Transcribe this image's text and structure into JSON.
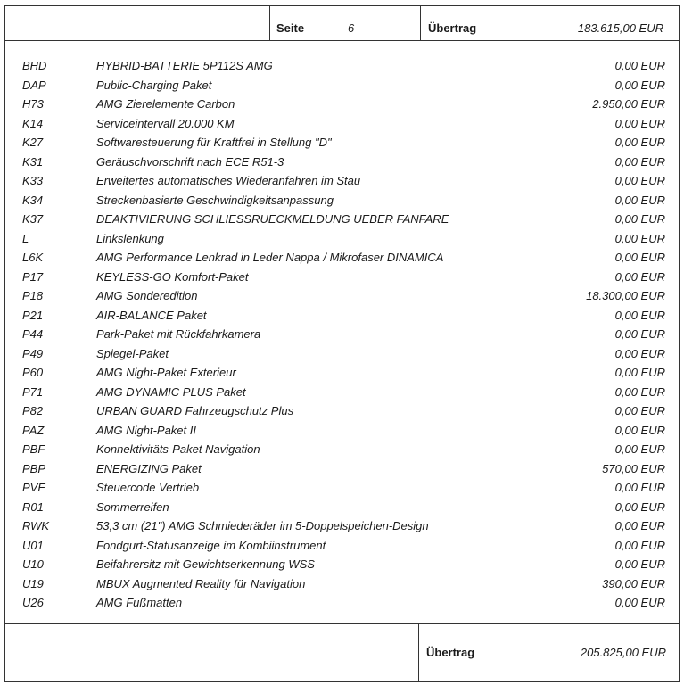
{
  "header": {
    "page_label": "Seite",
    "page_number": "6",
    "carry_label": "Übertrag",
    "carry_value": "183.615,00 EUR"
  },
  "items": [
    {
      "code": "BHD",
      "desc": "HYBRID-BATTERIE 5P112S AMG",
      "price": "0,00 EUR"
    },
    {
      "code": "DAP",
      "desc": "Public-Charging Paket",
      "price": "0,00 EUR"
    },
    {
      "code": "H73",
      "desc": "AMG Zierelemente Carbon",
      "price": "2.950,00 EUR"
    },
    {
      "code": "K14",
      "desc": "Serviceintervall 20.000 KM",
      "price": "0,00 EUR"
    },
    {
      "code": "K27",
      "desc": "Softwaresteuerung für Kraftfrei in Stellung \"D\"",
      "price": "0,00 EUR"
    },
    {
      "code": "K31",
      "desc": "Geräuschvorschrift nach ECE R51-3",
      "price": "0,00 EUR"
    },
    {
      "code": "K33",
      "desc": "Erweitertes automatisches Wiederanfahren im Stau",
      "price": "0,00 EUR"
    },
    {
      "code": "K34",
      "desc": "Streckenbasierte Geschwindigkeitsanpassung",
      "price": "0,00 EUR"
    },
    {
      "code": "K37",
      "desc": "DEAKTIVIERUNG SCHLIESSRUECKMELDUNG UEBER FANFARE",
      "price": "0,00 EUR"
    },
    {
      "code": "L",
      "desc": "Linkslenkung",
      "price": "0,00 EUR"
    },
    {
      "code": "L6K",
      "desc": "AMG Performance Lenkrad in Leder Nappa / Mikrofaser DINAMICA",
      "price": "0,00 EUR"
    },
    {
      "code": "P17",
      "desc": "KEYLESS-GO Komfort-Paket",
      "price": "0,00 EUR"
    },
    {
      "code": "P18",
      "desc": "AMG Sonderedition",
      "price": "18.300,00 EUR"
    },
    {
      "code": "P21",
      "desc": "AIR-BALANCE Paket",
      "price": "0,00 EUR"
    },
    {
      "code": "P44",
      "desc": "Park-Paket mit Rückfahrkamera",
      "price": "0,00 EUR"
    },
    {
      "code": "P49",
      "desc": "Spiegel-Paket",
      "price": "0,00 EUR"
    },
    {
      "code": "P60",
      "desc": "AMG Night-Paket Exterieur",
      "price": "0,00 EUR"
    },
    {
      "code": "P71",
      "desc": "AMG DYNAMIC PLUS Paket",
      "price": "0,00 EUR"
    },
    {
      "code": "P82",
      "desc": "URBAN GUARD Fahrzeugschutz Plus",
      "price": "0,00 EUR"
    },
    {
      "code": "PAZ",
      "desc": "AMG Night-Paket II",
      "price": "0,00 EUR"
    },
    {
      "code": "PBF",
      "desc": "Konnektivitäts-Paket Navigation",
      "price": "0,00 EUR"
    },
    {
      "code": "PBP",
      "desc": "ENERGIZING Paket",
      "price": "570,00 EUR"
    },
    {
      "code": "PVE",
      "desc": "Steuercode Vertrieb",
      "price": "0,00 EUR"
    },
    {
      "code": "R01",
      "desc": "Sommerreifen",
      "price": "0,00 EUR"
    },
    {
      "code": "RWK",
      "desc": "53,3 cm (21\") AMG Schmiederäder im 5-Doppelspeichen-Design",
      "price": "0,00 EUR"
    },
    {
      "code": "U01",
      "desc": "Fondgurt-Statusanzeige im Kombiinstrument",
      "price": "0,00 EUR"
    },
    {
      "code": "U10",
      "desc": "Beifahrersitz mit Gewichtserkennung WSS",
      "price": "0,00 EUR"
    },
    {
      "code": "U19",
      "desc": "MBUX Augmented Reality für Navigation",
      "price": "390,00 EUR"
    },
    {
      "code": "U26",
      "desc": "AMG Fußmatten",
      "price": "0,00 EUR"
    }
  ],
  "footer": {
    "carry_label": "Übertrag",
    "carry_value": "205.825,00 EUR"
  }
}
